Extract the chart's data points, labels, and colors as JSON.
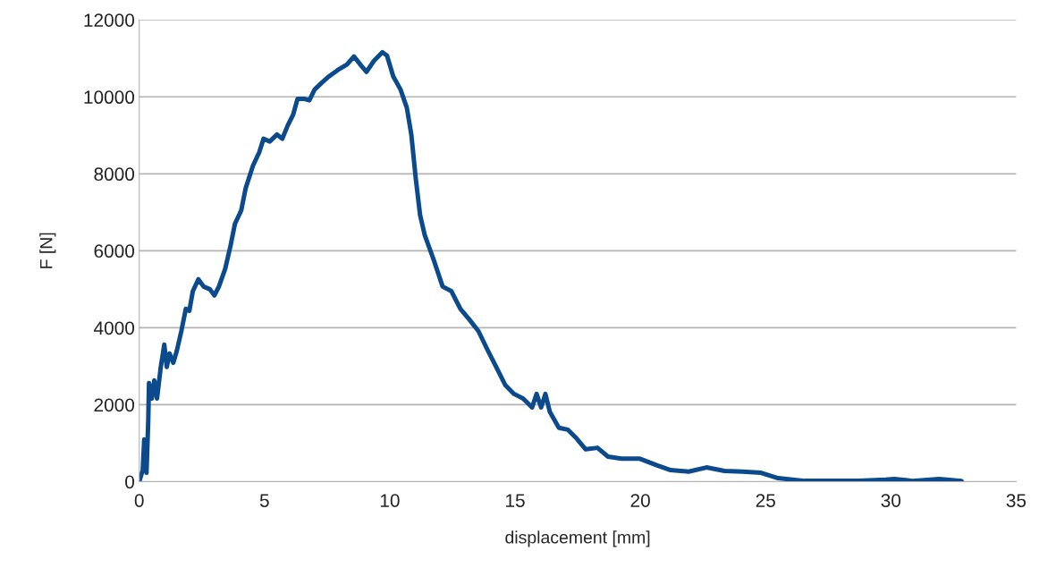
{
  "chart_data": {
    "type": "line",
    "xlabel": "displacement [mm]",
    "ylabel": "F [N]",
    "xlim": [
      0,
      35
    ],
    "xticks": [
      0,
      5,
      10,
      15,
      20,
      25,
      30,
      35
    ],
    "ylim": [
      0,
      12000
    ],
    "yticks": [
      0,
      2000,
      4000,
      6000,
      8000,
      10000,
      12000
    ],
    "grid": "y",
    "marker": "none",
    "line_style": "solid",
    "x": [
      0,
      0.14,
      0.2,
      0.29,
      0.36,
      0.39,
      0.5,
      0.6,
      0.71,
      0.86,
      1.0,
      1.1,
      1.21,
      1.36,
      1.5,
      1.68,
      1.86,
      2.0,
      2.14,
      2.36,
      2.57,
      2.82,
      3.0,
      3.18,
      3.43,
      3.64,
      3.82,
      4.07,
      4.25,
      4.54,
      4.79,
      4.96,
      5.21,
      5.5,
      5.71,
      5.93,
      6.14,
      6.32,
      6.57,
      6.79,
      7.0,
      7.29,
      7.57,
      7.93,
      8.29,
      8.57,
      8.86,
      9.07,
      9.36,
      9.71,
      9.89,
      10.14,
      10.43,
      10.68,
      10.86,
      11.04,
      11.21,
      11.39,
      11.75,
      12.11,
      12.46,
      12.82,
      13.18,
      13.54,
      13.89,
      14.25,
      14.61,
      14.96,
      15.32,
      15.68,
      15.86,
      16.04,
      16.21,
      16.39,
      16.75,
      17.11,
      17.46,
      17.82,
      18.29,
      18.71,
      19.25,
      19.96,
      20.68,
      21.21,
      21.93,
      22.64,
      23.36,
      24.07,
      24.82,
      25.5,
      26.57,
      27.64,
      28.71,
      29.79,
      30.14,
      30.86,
      31.93,
      32.82
    ],
    "series": [
      {
        "color": "#0b4a8c",
        "values": [
          0,
          300,
          1100,
          230,
          1580,
          2560,
          2160,
          2630,
          2160,
          2980,
          3560,
          2980,
          3330,
          3090,
          3400,
          3910,
          4490,
          4440,
          4950,
          5260,
          5070,
          5000,
          4840,
          5070,
          5530,
          6120,
          6700,
          7050,
          7630,
          8210,
          8560,
          8910,
          8840,
          9020,
          8910,
          9260,
          9530,
          9950,
          9950,
          9910,
          10190,
          10370,
          10530,
          10700,
          10840,
          11050,
          10810,
          10650,
          10930,
          11160,
          11070,
          10530,
          10190,
          9720,
          9020,
          7860,
          6930,
          6420,
          5770,
          5070,
          4950,
          4490,
          4210,
          3910,
          3440,
          2980,
          2510,
          2280,
          2160,
          1930,
          2280,
          1930,
          2280,
          1810,
          1400,
          1350,
          1120,
          840,
          880,
          650,
          600,
          600,
          420,
          300,
          260,
          370,
          280,
          260,
          230,
          90,
          20,
          20,
          20,
          50,
          70,
          20,
          70,
          20
        ]
      }
    ]
  }
}
